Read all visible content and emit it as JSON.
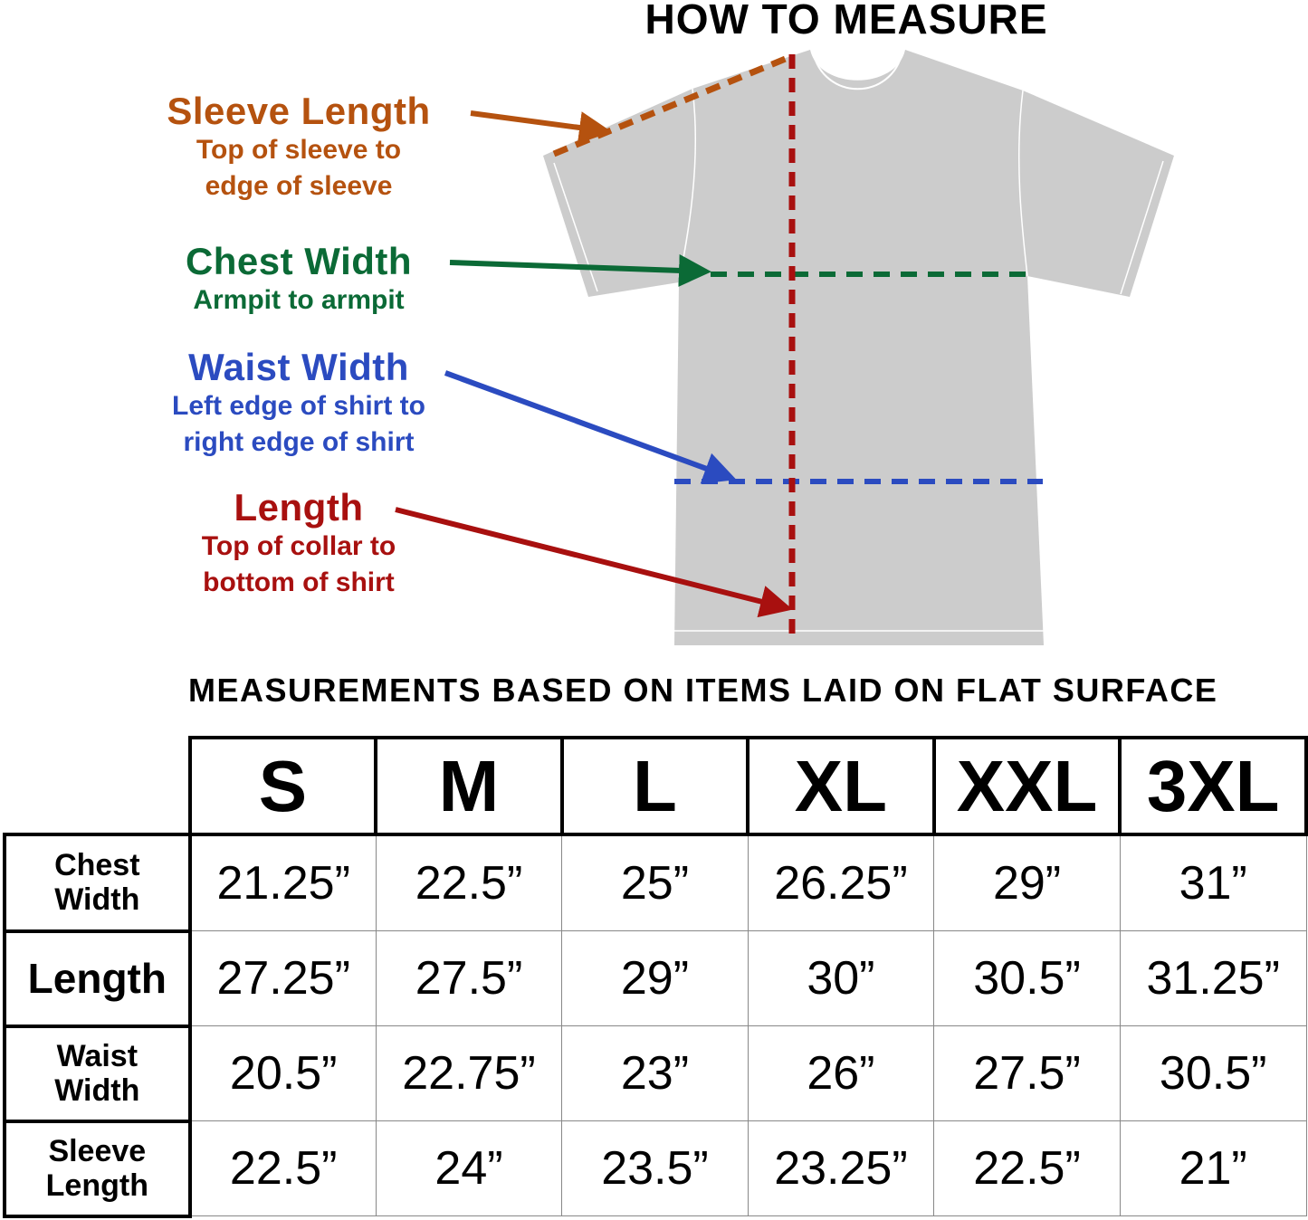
{
  "title": "HOW TO MEASURE",
  "guide": [
    {
      "key": "sleeve",
      "heading": "Sleeve Length",
      "lines": [
        "Top of sleeve to",
        "edge of sleeve"
      ],
      "color": "#b5520f"
    },
    {
      "key": "chest",
      "heading": "Chest Width",
      "lines": [
        "Armpit to armpit"
      ],
      "color": "#0b6a36"
    },
    {
      "key": "waist",
      "heading": "Waist Width",
      "lines": [
        "Left edge of shirt to",
        "right edge of shirt"
      ],
      "color": "#2b4bc0"
    },
    {
      "key": "length",
      "heading": "Length",
      "lines": [
        "Top of collar to",
        "bottom of shirt"
      ],
      "color": "#a8100f"
    }
  ],
  "shirt_color": "#cccccc",
  "subtitle": "MEASUREMENTS BASED ON ITEMS LAID ON FLAT SURFACE",
  "table": {
    "sizes": [
      "S",
      "M",
      "L",
      "XL",
      "XXL",
      "3XL"
    ],
    "rows": [
      {
        "label": [
          "Chest",
          "Width"
        ],
        "values": [
          "21.25”",
          "22.5”",
          "25”",
          "26.25”",
          "29”",
          "31”"
        ]
      },
      {
        "label": [
          "Length"
        ],
        "values": [
          "27.25”",
          "27.5”",
          "29”",
          "30”",
          "30.5”",
          "31.25”"
        ]
      },
      {
        "label": [
          "Waist",
          "Width"
        ],
        "values": [
          "20.5”",
          "22.75”",
          "23”",
          "26”",
          "27.5”",
          "30.5”"
        ]
      },
      {
        "label": [
          "Sleeve",
          "Length"
        ],
        "values": [
          "22.5”",
          "24”",
          "23.5”",
          "23.25”",
          "22.5”",
          "21”"
        ]
      }
    ]
  }
}
